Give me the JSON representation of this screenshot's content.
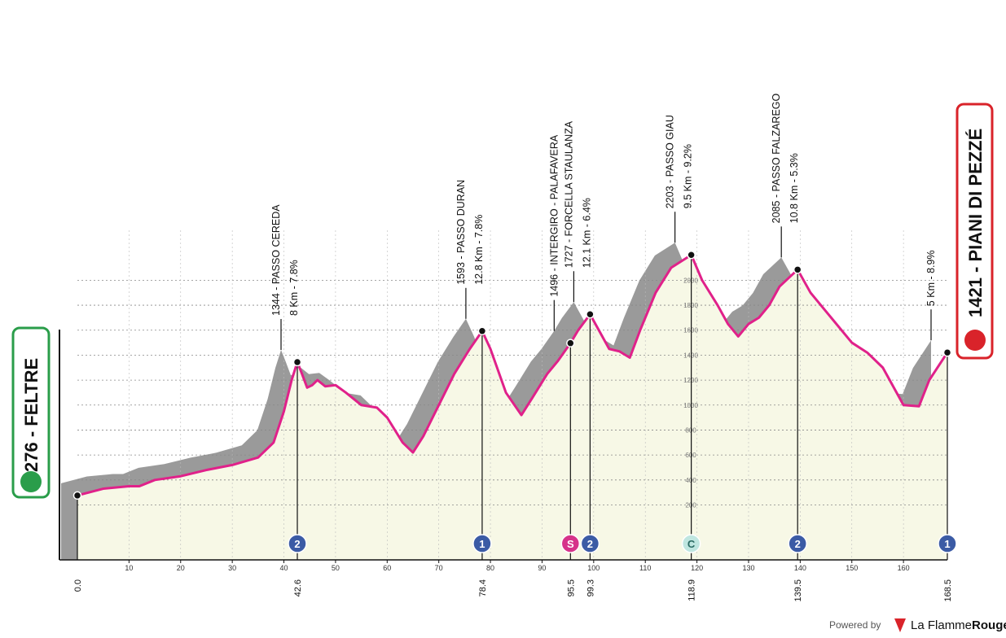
{
  "chart_data": {
    "type": "area",
    "x": [
      0,
      5,
      10,
      12,
      15,
      20,
      25,
      30,
      35,
      38,
      40,
      41.5,
      42.6,
      43.5,
      44.5,
      45.5,
      46.5,
      48,
      50,
      52,
      55,
      58,
      60,
      63,
      65,
      67,
      70,
      73,
      76,
      78.4,
      80,
      83,
      86,
      88,
      91,
      93,
      95.5,
      97,
      99.3,
      101,
      103,
      105,
      107,
      109,
      112,
      115,
      118.9,
      121,
      124,
      126,
      128,
      130,
      132,
      134,
      136,
      139.5,
      142,
      146,
      150,
      153,
      156,
      158,
      160,
      163,
      165,
      168.5
    ],
    "values": [
      276,
      330,
      350,
      350,
      400,
      430,
      480,
      520,
      580,
      700,
      950,
      1200,
      1344,
      1250,
      1140,
      1160,
      1200,
      1150,
      1160,
      1100,
      1000,
      980,
      900,
      700,
      620,
      750,
      1000,
      1250,
      1450,
      1593,
      1450,
      1100,
      920,
      1050,
      1250,
      1350,
      1496,
      1600,
      1727,
      1600,
      1450,
      1430,
      1380,
      1600,
      1900,
      2100,
      2203,
      2000,
      1800,
      1650,
      1550,
      1650,
      1700,
      1800,
      1950,
      2085,
      1900,
      1700,
      1500,
      1420,
      1300,
      1150,
      1000,
      990,
      1200,
      1421
    ],
    "color": "#e0218a",
    "shadow_color": "#9a9a9a",
    "fill": "#f7f8e6",
    "xlim": [
      0,
      168.5
    ],
    "ylim": [
      -240,
      2400
    ],
    "xticks": [
      10,
      20,
      30,
      40,
      50,
      60,
      70,
      80,
      90,
      100,
      110,
      120,
      130,
      140,
      150,
      160
    ],
    "yticks": [
      200,
      400,
      600,
      800,
      1000,
      1200,
      1400,
      1600,
      1800,
      2000
    ],
    "grid": true,
    "start": "276 - FELTRE",
    "finish": "1421 - PIANI DI PEZZÉ",
    "markers": [
      {
        "km": {
          "value": 0,
          "label": "0.0"
        }
      },
      {
        "km": 42.6,
        "icon": "2",
        "lines": [
          "1344 - PASSO CEREDA",
          "8 Km - 7.8%"
        ]
      },
      {
        "km": 78.4,
        "icon": "1",
        "lines": [
          "1593 - PASSO DURAN",
          "12.8 Km - 7.8%"
        ]
      },
      {
        "km": 95.5,
        "icon": "S",
        "lines": [
          "1496 - INTERGIRO - PALAFAVERA"
        ]
      },
      {
        "km": 99.3,
        "icon": "2",
        "lines": [
          "1727 - FORCELLA STAULANZA",
          "12.1 Km - 6.4%"
        ]
      },
      {
        "km": 118.9,
        "icon": "C",
        "lines": [
          "2203 - PASSO GIAU",
          "9.5 Km - 9.2%"
        ]
      },
      {
        "km": 139.5,
        "icon": "2",
        "lines": [
          "2085 - PASSO FALZAREGO",
          "10.8 Km - 5.3%"
        ]
      },
      {
        "km": 168.5,
        "icon": "1",
        "lines": [
          "5 Km - 8.9%"
        ]
      }
    ]
  },
  "footer": {
    "powered": "Powered by",
    "brand_a": "La Flamme",
    "brand_b": "Rouge"
  }
}
